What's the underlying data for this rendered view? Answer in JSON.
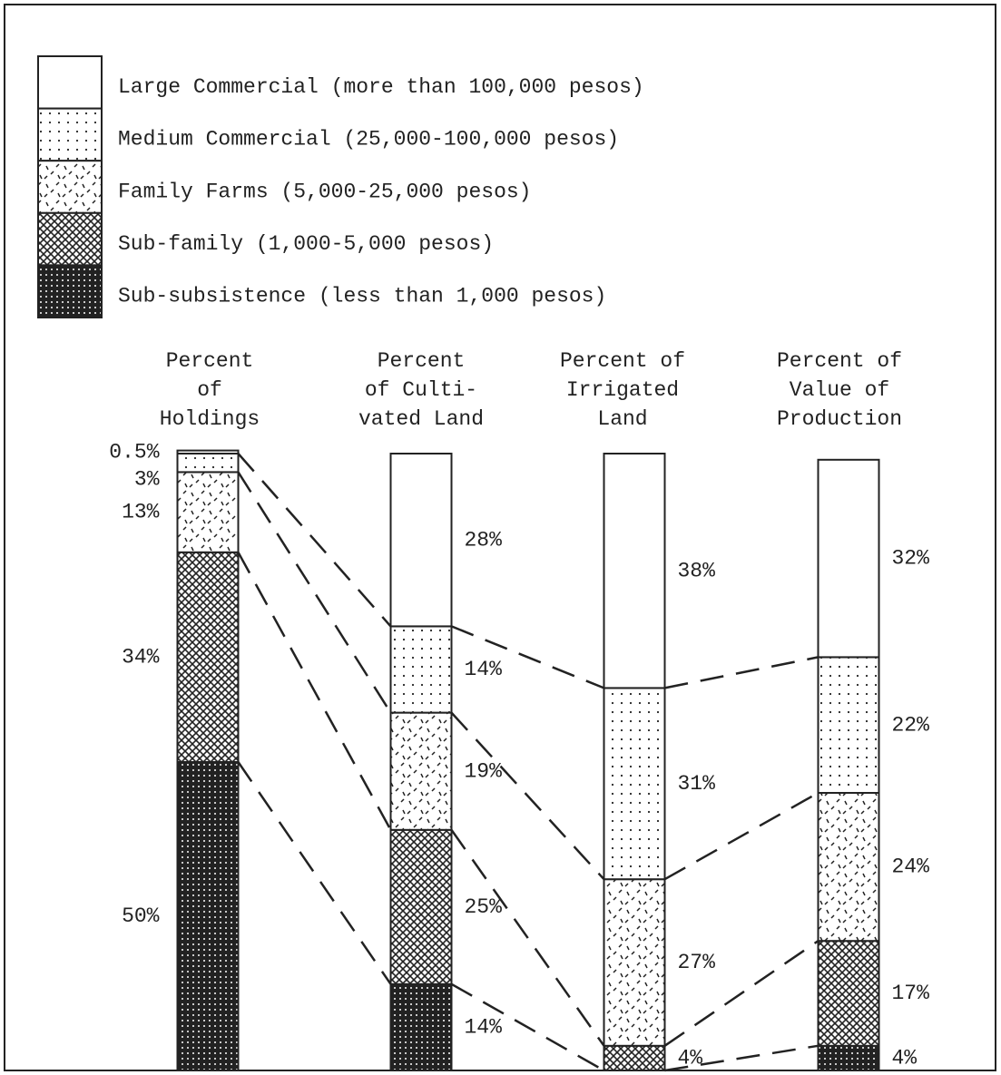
{
  "chart_data": {
    "type": "stacked-bar",
    "categories": [
      "Percent\nof\nHoldings",
      "Percent\nof Culti-\nvated Land",
      "Percent of\nIrrigated\nLand",
      "Percent of\nValue of\nProduction"
    ],
    "series": [
      {
        "name": "Large Commercial (more than 100,000 pesos)",
        "pattern": "none",
        "values": [
          0.5,
          28,
          38,
          32
        ],
        "value_labels": [
          "0.5%",
          "28%",
          "38%",
          "32%"
        ]
      },
      {
        "name": "Medium Commercial (25,000-100,000 pesos)",
        "pattern": "dots",
        "values": [
          3,
          14,
          31,
          22
        ],
        "value_labels": [
          "3%",
          "14%",
          "31%",
          "22%"
        ]
      },
      {
        "name": "Family Farms (5,000-25,000 pesos)",
        "pattern": "dashes",
        "values": [
          13,
          19,
          27,
          24
        ],
        "value_labels": [
          "13%",
          "19%",
          "27%",
          "24%"
        ]
      },
      {
        "name": "Sub-family (1,000-5,000 pesos)",
        "pattern": "crosshatch",
        "values": [
          34,
          25,
          4,
          17
        ],
        "value_labels": [
          "34%",
          "25%",
          "4%",
          "17%"
        ]
      },
      {
        "name": "Sub-subsistence (less than 1,000 pesos)",
        "pattern": "dense",
        "values": [
          50,
          14,
          0,
          4
        ],
        "value_labels": [
          "50%",
          "14%",
          null,
          "4%"
        ]
      }
    ],
    "ylim": [
      0,
      100
    ]
  }
}
